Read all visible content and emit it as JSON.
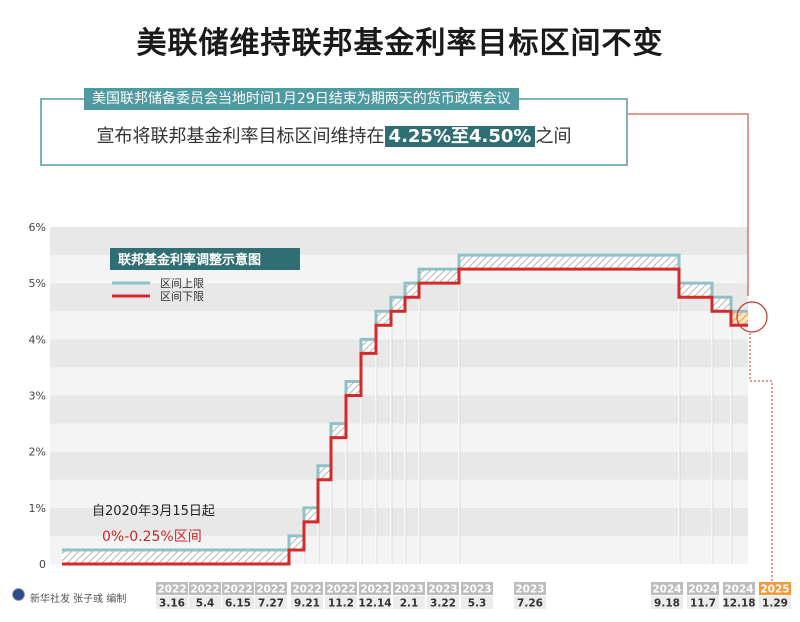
{
  "title": "美联储维持联邦基金利率目标区间不变",
  "info": {
    "line1": "美国联邦储备委员会当地时间1月29日结束为期两天的货币政策会议",
    "line2_prefix": "宣布将联邦基金利率目标区间维持在",
    "line2_value": "4.25%至4.50%",
    "line2_suffix": "之间"
  },
  "credit": "新华社发 张子彧 编制",
  "colors": {
    "upper_line": "#8fc1c6",
    "lower_line": "#d42a2a",
    "legend_bg": "#2f6f73",
    "band_dark": "#e8e8e8",
    "band_light": "#f4f4f4",
    "date_label_bg": "#bdbdbd",
    "date_highlight_bg": "#f39a3a",
    "info_border": "#7fb3b8"
  },
  "chart_data": {
    "type": "line",
    "title": "联邦基金利率调整示意图",
    "ylim": [
      0,
      6
    ],
    "yticks": [
      "0",
      "1%",
      "2%",
      "3%",
      "4%",
      "5%",
      "6%"
    ],
    "legend": {
      "upper": "区间上限",
      "lower": "区间下限",
      "placement": "top-left"
    },
    "annotation": {
      "line1": "自2020年3月15日起",
      "line2": "0%-0.25%区间"
    },
    "events": [
      {
        "year": "2022",
        "date": "3.16",
        "lower": 0.25,
        "upper": 0.5
      },
      {
        "year": "2022",
        "date": "5.4",
        "lower": 0.75,
        "upper": 1.0
      },
      {
        "year": "2022",
        "date": "6.15",
        "lower": 1.5,
        "upper": 1.75
      },
      {
        "year": "2022",
        "date": "7.27",
        "lower": 2.25,
        "upper": 2.5
      },
      {
        "year": "2022",
        "date": "9.21",
        "lower": 3.0,
        "upper": 3.25
      },
      {
        "year": "2022",
        "date": "11.2",
        "lower": 3.75,
        "upper": 4.0
      },
      {
        "year": "2022",
        "date": "12.14",
        "lower": 4.25,
        "upper": 4.5
      },
      {
        "year": "2023",
        "date": "2.1",
        "lower": 4.5,
        "upper": 4.75
      },
      {
        "year": "2023",
        "date": "3.22",
        "lower": 4.75,
        "upper": 5.0
      },
      {
        "year": "2023",
        "date": "5.3",
        "lower": 5.0,
        "upper": 5.25
      },
      {
        "year": "2023",
        "date": "7.26",
        "lower": 5.25,
        "upper": 5.5
      },
      {
        "year": "2024",
        "date": "9.18",
        "lower": 4.75,
        "upper": 5.0
      },
      {
        "year": "2024",
        "date": "11.7",
        "lower": 4.5,
        "upper": 4.75
      },
      {
        "year": "2024",
        "date": "12.18",
        "lower": 4.25,
        "upper": 4.5
      },
      {
        "year": "2025",
        "date": "1.29",
        "lower": 4.25,
        "upper": 4.5
      }
    ],
    "start": {
      "lower": 0,
      "upper": 0.25
    }
  }
}
